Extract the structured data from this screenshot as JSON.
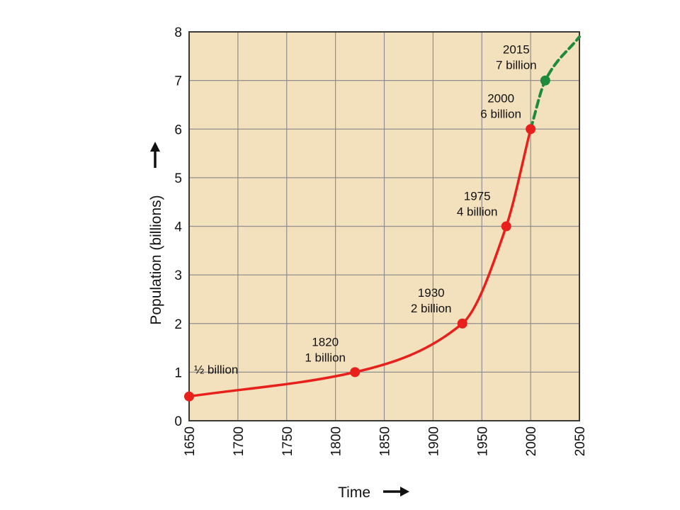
{
  "chart_data": {
    "type": "line",
    "title": "",
    "xlabel": "Time",
    "ylabel": "Population (billions)",
    "xlim": [
      1650,
      2050
    ],
    "ylim": [
      0,
      8
    ],
    "x_ticks": [
      "1650",
      "1700",
      "1750",
      "1800",
      "1850",
      "1900",
      "1950",
      "2000",
      "2050"
    ],
    "y_ticks": [
      "0",
      "1",
      "2",
      "3",
      "4",
      "5",
      "6",
      "7",
      "8"
    ],
    "grid": true,
    "background_color": "#f3e0bd",
    "series": [
      {
        "style": "solid",
        "color": "#e8201c",
        "x": [
          1650,
          1820,
          1930,
          1975,
          2000
        ],
        "y": [
          0.5,
          1,
          2,
          4,
          6
        ],
        "point_labels": [
          [
            "½ billion"
          ],
          [
            "1820",
            "1 billion"
          ],
          [
            "1930",
            "2 billion"
          ],
          [
            "1975",
            "4 billion"
          ],
          [
            "2000",
            "6 billion"
          ]
        ]
      },
      {
        "style": "dashed",
        "color": "#1e8a3c",
        "x": [
          2000,
          2015,
          2050
        ],
        "y": [
          6,
          7,
          7.9
        ],
        "markers": [
          2015
        ],
        "point_labels": [
          [],
          [
            "2015",
            "7 billion"
          ],
          []
        ]
      }
    ]
  }
}
